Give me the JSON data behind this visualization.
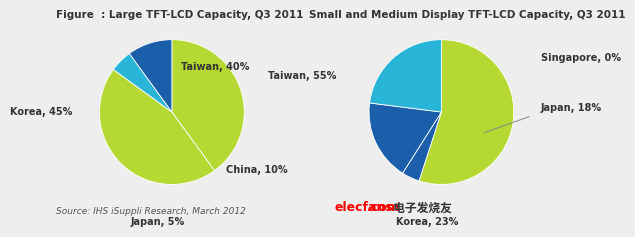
{
  "fig_title1": "Figure  : Large TFT-LCD Capacity, Q3 2011",
  "fig_title2": "Small and Medium Display TFT-LCD Capacity, Q3 2011",
  "source_text": "Source: IHS iSuppli Research, March 2012",
  "watermark1": "elecfans",
  "watermark2": ".com",
  "watermark3": " 电子发烧友",
  "chart1": {
    "values": [
      40,
      45,
      5,
      10
    ],
    "colors": [
      "#b5d832",
      "#b5d832",
      "#29b5d8",
      "#1b5eaa"
    ],
    "startangle": 90
  },
  "chart2": {
    "values": [
      55,
      4,
      18,
      23
    ],
    "colors": [
      "#b5d832",
      "#1b5eaa",
      "#1b5eaa",
      "#29b5d8"
    ],
    "startangle": 90
  },
  "background_color": "#eeeeee",
  "title_fontsize": 7.5,
  "label_fontsize": 7.0,
  "source_fontsize": 6.5
}
